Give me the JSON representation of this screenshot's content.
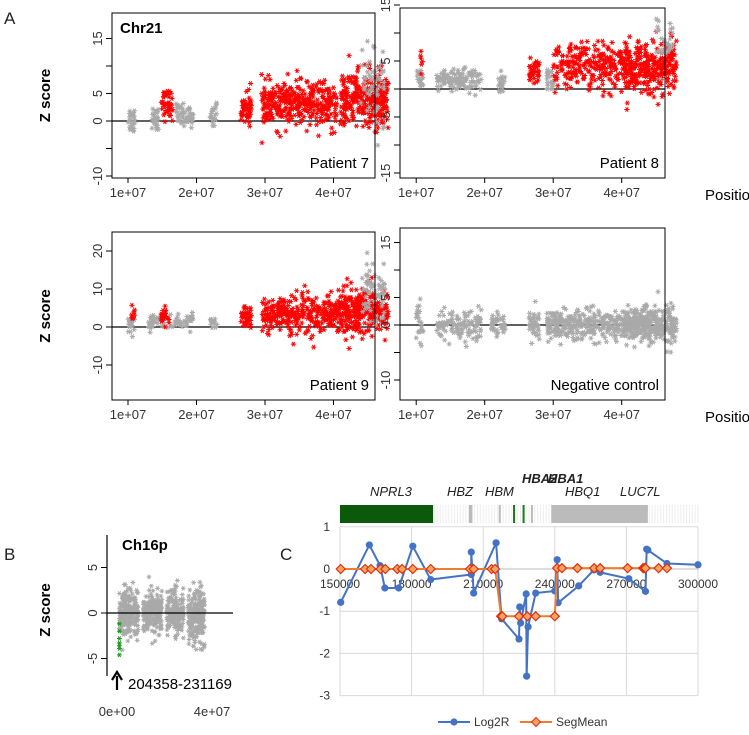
{
  "panel_labels": {
    "a": "A",
    "b": "B",
    "c": "C"
  },
  "chart_data": [
    {
      "type": "scatter",
      "panel": "A",
      "title": "Chr21",
      "label": "Patient 7",
      "ylabel": "Z score",
      "xlabel": "",
      "yticks": [
        15,
        5,
        0,
        -10
      ],
      "xticks": [
        "1e+07",
        "2e+07",
        "3e+07",
        "4e+07"
      ],
      "xtick_values": [
        10000000.0,
        20000000.0,
        30000000.0,
        40000000.0
      ],
      "clusters": [
        [
          10,
          11,
          0.2,
          1.3,
          25,
          "gray"
        ],
        [
          13.5,
          14.5,
          0.8,
          1.3,
          25,
          "gray"
        ],
        [
          14.8,
          16.5,
          3,
          1.3,
          45,
          "red"
        ],
        [
          17,
          19.5,
          1,
          1,
          50,
          "gray"
        ],
        [
          22,
          23,
          1,
          1.2,
          20,
          "gray"
        ],
        [
          26.5,
          28,
          2.5,
          1.5,
          50,
          "red"
        ],
        [
          29.5,
          34,
          3,
          2,
          150,
          "red"
        ],
        [
          34,
          40.5,
          3,
          2,
          200,
          "red"
        ],
        [
          41,
          48,
          4,
          2.5,
          300,
          "red"
        ],
        [
          44,
          47.5,
          7,
          4,
          50,
          "gray"
        ]
      ]
    },
    {
      "type": "scatter",
      "panel": "A",
      "title": "",
      "label": "Patient 8",
      "ylabel": "",
      "xlabel": "Position",
      "yticks": [
        15,
        5,
        -5,
        -15
      ],
      "xticks": [
        "1e+07",
        "2e+07",
        "3e+07",
        "4e+07"
      ],
      "xtick_values": [
        10000000.0,
        20000000.0,
        30000000.0,
        40000000.0
      ],
      "clusters": [
        [
          10,
          11,
          2,
          1.3,
          20,
          "gray"
        ],
        [
          10.5,
          11,
          6,
          2,
          6,
          "red"
        ],
        [
          13,
          19.5,
          1.5,
          1,
          120,
          "gray"
        ],
        [
          22,
          23,
          1,
          1,
          20,
          "gray"
        ],
        [
          26.5,
          28,
          3,
          1.2,
          40,
          "red"
        ],
        [
          29,
          30,
          2,
          1,
          20,
          "gray"
        ],
        [
          30,
          40.5,
          4,
          2,
          250,
          "red"
        ],
        [
          40.5,
          48,
          4,
          2.3,
          300,
          "red"
        ],
        [
          45,
          47.5,
          8,
          2.5,
          30,
          "gray"
        ]
      ]
    },
    {
      "type": "scatter",
      "panel": "A",
      "title": "",
      "label": "Patient 9",
      "ylabel": "Z score",
      "xlabel": "",
      "yticks": [
        20,
        10,
        0,
        -10
      ],
      "xticks": [
        "1e+07",
        "2e+07",
        "3e+07",
        "4e+07"
      ],
      "xtick_values": [
        10000000.0,
        20000000.0,
        30000000.0,
        40000000.0
      ],
      "clusters": [
        [
          10,
          11,
          0.5,
          1.5,
          20,
          "gray"
        ],
        [
          10.5,
          11,
          3,
          1.5,
          8,
          "red"
        ],
        [
          13,
          19.5,
          1.5,
          1.2,
          80,
          "gray"
        ],
        [
          14.8,
          16,
          2.5,
          1.2,
          25,
          "red"
        ],
        [
          22,
          23,
          1,
          1,
          15,
          "gray"
        ],
        [
          26.5,
          28,
          2.5,
          1.5,
          45,
          "red"
        ],
        [
          29.5,
          40.5,
          3,
          2.5,
          300,
          "red"
        ],
        [
          40.5,
          48,
          4.5,
          3,
          320,
          "red"
        ],
        [
          44,
          47.5,
          9,
          5,
          60,
          "gray"
        ]
      ]
    },
    {
      "type": "scatter",
      "panel": "A",
      "title": "",
      "label": "Negative control",
      "ylabel": "",
      "xlabel": "Position",
      "yticks": [
        15,
        5,
        0,
        -10
      ],
      "xticks": [
        "1e+07",
        "2e+07",
        "3e+07",
        "4e+07"
      ],
      "xtick_values": [
        10000000.0,
        20000000.0,
        30000000.0,
        40000000.0
      ],
      "clusters": [
        [
          10,
          11,
          0,
          1.8,
          25,
          "gray"
        ],
        [
          13,
          19.5,
          0,
          1.3,
          120,
          "gray"
        ],
        [
          21,
          23,
          0,
          1.2,
          40,
          "gray"
        ],
        [
          26.5,
          28,
          0,
          1.2,
          40,
          "gray"
        ],
        [
          29,
          40.5,
          0,
          1.4,
          300,
          "gray"
        ],
        [
          40.5,
          48,
          0,
          1.6,
          350,
          "gray"
        ]
      ]
    },
    {
      "type": "scatter",
      "panel": "B",
      "title": "Ch16p",
      "ylabel": "Z score",
      "yticks": [
        5,
        0,
        -5
      ],
      "xticks": [
        "0e+00",
        "4e+07"
      ],
      "xtick_values": [
        0,
        40000000.0
      ],
      "annotation": "204358-231169",
      "clusters": [
        [
          0.1,
          0.9,
          0,
          1.3,
          250,
          "gray"
        ],
        [
          1.1,
          1.9,
          0,
          1.2,
          200,
          "gray"
        ],
        [
          2.1,
          2.8,
          0,
          1.2,
          200,
          "gray"
        ],
        [
          3.0,
          3.7,
          -0.5,
          1.5,
          220,
          "gray"
        ]
      ],
      "highlight_points": [
        [
          0.1,
          -1.2
        ],
        [
          0.1,
          -2
        ],
        [
          0.1,
          -2.8
        ],
        [
          0.1,
          -3.3
        ],
        [
          0.1,
          -3.6
        ],
        [
          0.1,
          -3.9
        ],
        [
          0.1,
          -4.6
        ]
      ]
    },
    {
      "type": "line",
      "panel": "C",
      "ylim": [
        -3,
        1
      ],
      "xlim": [
        150000,
        300000
      ],
      "yticks": [
        "1",
        "0",
        "-1",
        "-2",
        "-3"
      ],
      "xticks": [
        "150000",
        "180000",
        "210000",
        "240000",
        "270000",
        "300000"
      ],
      "genes": [
        {
          "name": "NPRL3",
          "start": 150000,
          "end": 189000,
          "color": "#0b5a0b",
          "bold": false
        },
        {
          "name": "HBZ",
          "start": 204000,
          "end": 205500,
          "color": "#bbbbbb",
          "bold": false
        },
        {
          "name": "HBM",
          "start": 216500,
          "end": 217300,
          "color": "#bbbbbb",
          "bold": false
        },
        {
          "name": "HBA2",
          "start": 222500,
          "end": 223100,
          "color": "#1a7a1a",
          "bold": true
        },
        {
          "name": "HBA1",
          "start": 226500,
          "end": 227100,
          "color": "#1a7a1a",
          "bold": true
        },
        {
          "name": "HBQ1",
          "start": 230000,
          "end": 230600,
          "color": "#bbbbbb",
          "bold": false
        },
        {
          "name": "LUC7L",
          "start": 238500,
          "end": 279000,
          "color": "#bbbbbb",
          "bold": false
        }
      ],
      "series": [
        {
          "name": "Log2R",
          "color": "#4472c4",
          "points": [
            [
              150300,
              -0.79
            ],
            [
              162300,
              0.57
            ],
            [
              166800,
              0.08
            ],
            [
              168800,
              -0.45
            ],
            [
              174600,
              -0.45
            ],
            [
              180500,
              0.54
            ],
            [
              188000,
              -0.25
            ],
            [
              205000,
              -0.13
            ],
            [
              205000,
              0.4
            ],
            [
              206000,
              -0.57
            ],
            [
              215400,
              0.62
            ],
            [
              217700,
              -1.18
            ],
            [
              225000,
              -1.66
            ],
            [
              225300,
              -0.9
            ],
            [
              225700,
              -1.28
            ],
            [
              228000,
              -0.59
            ],
            [
              228200,
              -2.54
            ],
            [
              228800,
              -1.37
            ],
            [
              232000,
              -0.57
            ],
            [
              240000,
              -0.52
            ],
            [
              241000,
              0.22
            ],
            [
              241400,
              -0.8
            ],
            [
              250000,
              -0.4
            ],
            [
              256400,
              -0.02
            ],
            [
              259000,
              -0.08
            ],
            [
              271000,
              -0.23
            ],
            [
              278000,
              -0.53
            ],
            [
              278500,
              0.47
            ],
            [
              279000,
              0.45
            ],
            [
              287000,
              0.13
            ],
            [
              300000,
              0.1
            ]
          ]
        },
        {
          "name": "SegMean",
          "color": "#ed7d31",
          "points": [
            [
              150300,
              0
            ],
            [
              160500,
              0
            ],
            [
              163000,
              0
            ],
            [
              167000,
              0
            ],
            [
              169000,
              0
            ],
            [
              174000,
              0
            ],
            [
              176000,
              0
            ],
            [
              180500,
              0
            ],
            [
              188000,
              0
            ],
            [
              204500,
              0
            ],
            [
              206000,
              0
            ],
            [
              213500,
              0
            ],
            [
              215000,
              0
            ],
            [
              217500,
              -1.12
            ],
            [
              218000,
              -1.12
            ],
            [
              225000,
              -1.12
            ],
            [
              228500,
              -1.12
            ],
            [
              232000,
              -1.12
            ],
            [
              240000,
              -1.12
            ],
            [
              241000,
              0.02
            ],
            [
              243000,
              0.02
            ],
            [
              249500,
              0.02
            ],
            [
              256500,
              0.02
            ],
            [
              259000,
              0.02
            ],
            [
              270500,
              0.02
            ],
            [
              277000,
              0.02
            ],
            [
              277500,
              0.02
            ],
            [
              278000,
              0.02
            ],
            [
              283500,
              0.02
            ],
            [
              287000,
              0.02
            ]
          ]
        }
      ]
    }
  ]
}
